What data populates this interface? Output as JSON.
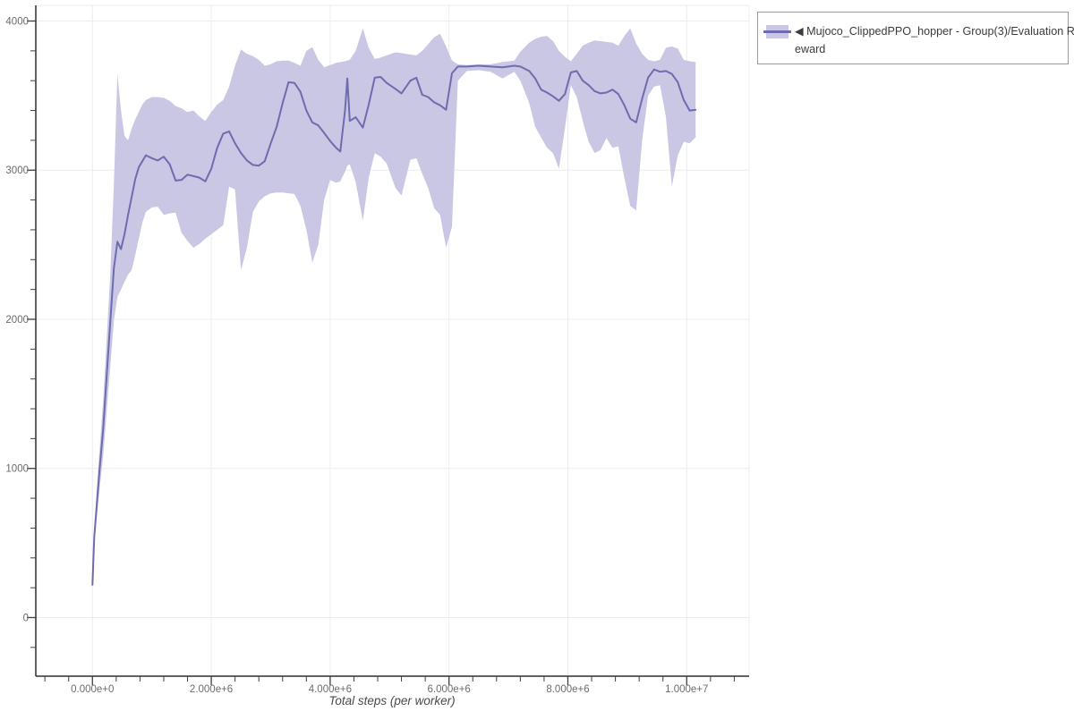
{
  "colors": {
    "line": "#6e6cae",
    "band": "#c9c7e3",
    "grid": "#ececf1",
    "spine": "#2f2f2f",
    "tick": "#3f3f3f",
    "tick_label": "#6b6b6b",
    "axis_title": "#4a4a4a",
    "legend_border": "#9b9b9b",
    "legend_text": "#3b3b3b"
  },
  "legend": {
    "marker": "◀",
    "series_full_label": "◀ Mujoco_ClippedPPO_hopper - Group(3)/Evaluation Reward",
    "lines": [
      "◀ Mujoco_ClippedPPO_hopper - Group(3)/Evaluation R",
      "eward"
    ]
  },
  "chart_data": {
    "type": "line",
    "title": "",
    "xlabel": "Total steps (per worker)",
    "ylabel": "",
    "legend_position": "top-right-outside",
    "grid": "major",
    "x_unit": "millions of steps",
    "xlim_millions": [
      -0.953,
      11.05
    ],
    "ylim": [
      -393,
      4105
    ],
    "x_ticks_millions": [
      0,
      2,
      4,
      6,
      8,
      10
    ],
    "x_tick_labels": [
      "0.000e+0",
      "2.000e+6",
      "4.000e+6",
      "6.000e+6",
      "8.000e+6",
      "1.000e+7"
    ],
    "x_minor_step_millions": 0.4,
    "y_ticks": [
      0,
      1000,
      2000,
      3000,
      4000
    ],
    "y_tick_labels": [
      "0",
      "1000",
      "2000",
      "3000",
      "4000"
    ],
    "y_minor_step": 200,
    "x_millions": [
      0,
      0.03,
      0.08,
      0.12,
      0.18,
      0.24,
      0.3,
      0.36,
      0.42,
      0.48,
      0.54,
      0.6,
      0.66,
      0.72,
      0.78,
      0.84,
      0.9,
      1,
      1.1,
      1.2,
      1.3,
      1.4,
      1.5,
      1.6,
      1.7,
      1.8,
      1.9,
      2,
      2.1,
      2.2,
      2.3,
      2.4,
      2.5,
      2.6,
      2.7,
      2.8,
      2.9,
      3,
      3.1,
      3.2,
      3.3,
      3.4,
      3.5,
      3.6,
      3.7,
      3.8,
      3.9,
      4,
      4.1,
      4.17,
      4.25,
      4.29,
      4.33,
      4.43,
      4.55,
      4.65,
      4.75,
      4.85,
      4.95,
      5.1,
      5.2,
      5.35,
      5.45,
      5.55,
      5.65,
      5.75,
      5.85,
      5.95,
      6.05,
      6.15,
      6.3,
      6.5,
      6.7,
      6.9,
      7.1,
      7.2,
      7.35,
      7.45,
      7.55,
      7.65,
      7.75,
      7.85,
      7.95,
      8.05,
      8.15,
      8.25,
      8.35,
      8.45,
      8.55,
      8.65,
      8.75,
      8.85,
      8.95,
      9.05,
      9.15,
      9.25,
      9.35,
      9.45,
      9.55,
      9.65,
      9.75,
      9.85,
      9.95,
      10.05,
      10.15
    ],
    "mean": [
      220,
      540,
      790,
      990,
      1260,
      1620,
      1980,
      2340,
      2520,
      2470,
      2570,
      2700,
      2820,
      2940,
      3020,
      3060,
      3100,
      3080,
      3065,
      3090,
      3040,
      2930,
      2935,
      2970,
      2960,
      2950,
      2925,
      3010,
      3150,
      3245,
      3260,
      3180,
      3115,
      3065,
      3035,
      3030,
      3060,
      3180,
      3290,
      3450,
      3590,
      3585,
      3525,
      3400,
      3320,
      3300,
      3250,
      3195,
      3150,
      3125,
      3400,
      3615,
      3330,
      3355,
      3285,
      3440,
      3620,
      3625,
      3585,
      3545,
      3515,
      3600,
      3620,
      3505,
      3490,
      3455,
      3435,
      3405,
      3650,
      3695,
      3695,
      3700,
      3695,
      3690,
      3700,
      3695,
      3665,
      3615,
      3540,
      3520,
      3495,
      3465,
      3510,
      3655,
      3665,
      3600,
      3570,
      3530,
      3515,
      3520,
      3540,
      3510,
      3435,
      3345,
      3320,
      3480,
      3620,
      3675,
      3660,
      3665,
      3645,
      3590,
      3470,
      3400,
      3405
    ],
    "band_low": [
      220,
      480,
      700,
      860,
      1080,
      1380,
      1680,
      1990,
      2150,
      2200,
      2250,
      2300,
      2330,
      2430,
      2540,
      2650,
      2720,
      2750,
      2755,
      2700,
      2710,
      2715,
      2580,
      2525,
      2480,
      2505,
      2540,
      2570,
      2600,
      2630,
      2890,
      2870,
      2330,
      2480,
      2720,
      2790,
      2825,
      2845,
      2850,
      2850,
      2845,
      2840,
      2760,
      2600,
      2380,
      2500,
      2800,
      2935,
      2915,
      2925,
      2990,
      3030,
      3040,
      2920,
      2660,
      2950,
      3115,
      3090,
      3045,
      2880,
      2830,
      3070,
      3080,
      2975,
      2880,
      2745,
      2700,
      2480,
      2620,
      3600,
      3665,
      3670,
      3660,
      3615,
      3660,
      3600,
      3450,
      3290,
      3220,
      3150,
      3115,
      3010,
      3280,
      3570,
      3490,
      3330,
      3190,
      3115,
      3135,
      3215,
      3150,
      3160,
      2950,
      2760,
      2730,
      3200,
      3500,
      3560,
      3570,
      3360,
      2890,
      3100,
      3190,
      3180,
      3220
    ],
    "band_high": [
      220,
      600,
      900,
      1120,
      1450,
      1870,
      2300,
      2900,
      3645,
      3400,
      3230,
      3200,
      3280,
      3340,
      3390,
      3440,
      3470,
      3490,
      3490,
      3485,
      3465,
      3430,
      3415,
      3390,
      3400,
      3360,
      3330,
      3390,
      3440,
      3470,
      3560,
      3700,
      3810,
      3780,
      3765,
      3740,
      3700,
      3710,
      3730,
      3735,
      3735,
      3720,
      3700,
      3800,
      3825,
      3740,
      3690,
      3705,
      3720,
      3725,
      3730,
      3735,
      3740,
      3800,
      3950,
      3820,
      3745,
      3755,
      3770,
      3790,
      3785,
      3775,
      3770,
      3800,
      3845,
      3890,
      3915,
      3830,
      3735,
      3710,
      3705,
      3710,
      3710,
      3725,
      3735,
      3795,
      3855,
      3880,
      3895,
      3900,
      3865,
      3800,
      3760,
      3730,
      3780,
      3835,
      3855,
      3870,
      3865,
      3860,
      3855,
      3835,
      3900,
      3950,
      3850,
      3780,
      3740,
      3730,
      3740,
      3820,
      3830,
      3815,
      3740,
      3730,
      3725
    ]
  }
}
